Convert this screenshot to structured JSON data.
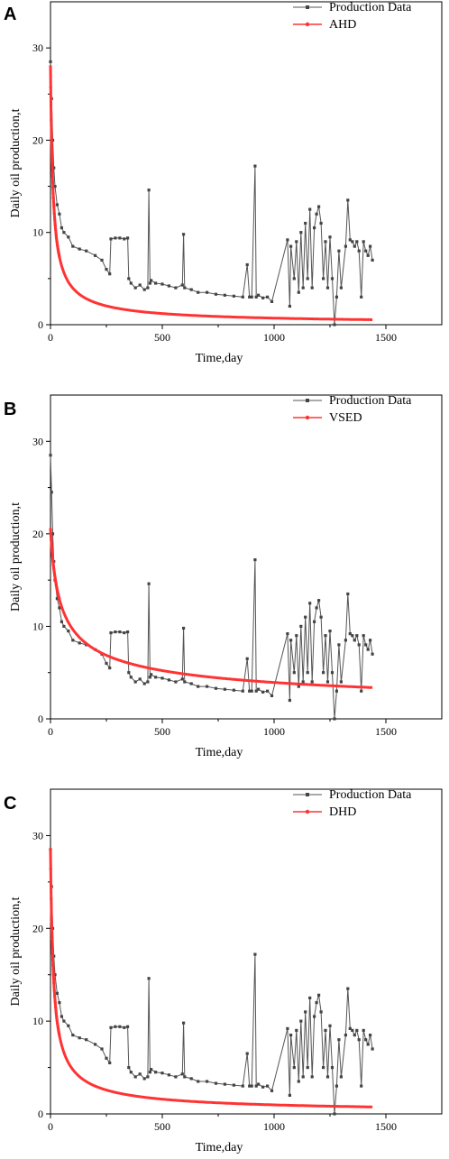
{
  "chart_data": [
    {
      "panel_label": "A",
      "type": "line",
      "xlabel": "Time,day",
      "ylabel": "Daily oil production,t",
      "xlim": [
        0,
        1750
      ],
      "ylim": [
        0,
        35
      ],
      "xticks": [
        0,
        500,
        1000,
        1500
      ],
      "yticks": [
        0,
        10,
        20,
        30
      ],
      "legend_position": "top-right",
      "series": [
        {
          "name": "Production Data",
          "style": "line-with-markers",
          "color": "#555555",
          "x": [
            0,
            5,
            10,
            15,
            20,
            30,
            40,
            50,
            60,
            80,
            100,
            130,
            160,
            200,
            230,
            250,
            265,
            270,
            290,
            310,
            330,
            345,
            350,
            360,
            380,
            400,
            420,
            435,
            440,
            445,
            450,
            470,
            500,
            530,
            560,
            590,
            595,
            600,
            630,
            660,
            700,
            740,
            780,
            820,
            860,
            880,
            890,
            900,
            915,
            920,
            930,
            950,
            970,
            990,
            1060,
            1070,
            1075,
            1090,
            1100,
            1110,
            1120,
            1130,
            1140,
            1150,
            1160,
            1170,
            1180,
            1190,
            1200,
            1210,
            1220,
            1230,
            1240,
            1250,
            1260,
            1270,
            1280,
            1290,
            1300,
            1320,
            1330,
            1340,
            1350,
            1360,
            1370,
            1380,
            1390,
            1400,
            1410,
            1420,
            1430,
            1440
          ],
          "y": [
            28.5,
            24.5,
            20,
            17,
            15,
            13,
            12,
            10.5,
            10,
            9.5,
            8.5,
            8.2,
            8,
            7.5,
            7,
            6,
            5.5,
            9.3,
            9.4,
            9.4,
            9.3,
            9.4,
            5,
            4.5,
            4,
            4.3,
            3.8,
            4,
            14.6,
            4.5,
            4.8,
            4.5,
            4.4,
            4.2,
            4,
            4.3,
            9.8,
            4,
            3.8,
            3.5,
            3.5,
            3.3,
            3.2,
            3.1,
            3,
            6.5,
            3,
            3,
            17.2,
            3,
            3.2,
            2.9,
            3,
            2.5,
            9.2,
            2,
            8.5,
            5,
            9,
            3.5,
            10,
            4,
            11,
            5,
            12.5,
            4,
            10.5,
            12,
            12.8,
            11,
            5,
            9,
            4,
            9.5,
            5,
            0,
            3,
            8,
            4,
            8.5,
            13.5,
            9.2,
            9,
            8.5,
            9,
            8,
            3,
            9,
            8,
            7.5,
            8.5,
            7
          ]
        },
        {
          "name": "AHD",
          "style": "line-with-markers",
          "color": "#ff3333",
          "model": "hyperbolic",
          "qi": 28.0,
          "di": 0.09,
          "b": 1.3,
          "x_end": 1440
        }
      ]
    },
    {
      "panel_label": "B",
      "type": "line",
      "xlabel": "Time,day",
      "ylabel": "Daily oil production,t",
      "xlim": [
        0,
        1750
      ],
      "ylim": [
        0,
        35
      ],
      "xticks": [
        0,
        500,
        1000,
        1500
      ],
      "yticks": [
        0,
        10,
        20,
        30
      ],
      "legend_position": "top-right",
      "series": [
        {
          "name": "Production Data",
          "style": "line-with-markers",
          "color": "#555555",
          "x": [
            0,
            5,
            10,
            15,
            20,
            30,
            40,
            50,
            60,
            80,
            100,
            130,
            160,
            200,
            230,
            250,
            265,
            270,
            290,
            310,
            330,
            345,
            350,
            360,
            380,
            400,
            420,
            435,
            440,
            445,
            450,
            470,
            500,
            530,
            560,
            590,
            595,
            600,
            630,
            660,
            700,
            740,
            780,
            820,
            860,
            880,
            890,
            900,
            915,
            920,
            930,
            950,
            970,
            990,
            1060,
            1070,
            1075,
            1090,
            1100,
            1110,
            1120,
            1130,
            1140,
            1150,
            1160,
            1170,
            1180,
            1190,
            1200,
            1210,
            1220,
            1230,
            1240,
            1250,
            1260,
            1270,
            1280,
            1290,
            1300,
            1320,
            1330,
            1340,
            1350,
            1360,
            1370,
            1380,
            1390,
            1400,
            1410,
            1420,
            1430,
            1440
          ],
          "y": [
            28.5,
            24.5,
            20,
            17,
            15,
            13,
            12,
            10.5,
            10,
            9.5,
            8.5,
            8.2,
            8,
            7.5,
            7,
            6,
            5.5,
            9.3,
            9.4,
            9.4,
            9.3,
            9.4,
            5,
            4.5,
            4,
            4.3,
            3.8,
            4,
            14.6,
            4.5,
            4.8,
            4.5,
            4.4,
            4.2,
            4,
            4.3,
            9.8,
            4,
            3.8,
            3.5,
            3.5,
            3.3,
            3.2,
            3.1,
            3,
            6.5,
            3,
            3,
            17.2,
            3,
            3.2,
            2.9,
            3,
            2.5,
            9.2,
            2,
            8.5,
            5,
            9,
            3.5,
            10,
            4,
            11,
            5,
            12.5,
            4,
            10.5,
            12,
            12.8,
            11,
            5,
            9,
            4,
            9.5,
            5,
            0,
            3,
            8,
            4,
            8.5,
            13.5,
            9.2,
            9,
            8.5,
            9,
            8,
            3,
            9,
            8,
            7.5,
            8.5,
            7
          ]
        },
        {
          "name": "VSED",
          "style": "line-with-markers",
          "color": "#ff3333",
          "model": "power",
          "qi": 20.5,
          "di": 0.05,
          "b": 0.42,
          "x_end": 1440
        }
      ]
    },
    {
      "panel_label": "C",
      "type": "line",
      "xlabel": "Time,day",
      "ylabel": "Daily oil production,t",
      "xlim": [
        0,
        1750
      ],
      "ylim": [
        0,
        35
      ],
      "xticks": [
        0,
        500,
        1000,
        1500
      ],
      "yticks": [
        0,
        10,
        20,
        30
      ],
      "legend_position": "top-right",
      "series": [
        {
          "name": "Production Data",
          "style": "line-with-markers",
          "color": "#555555",
          "x": [
            0,
            5,
            10,
            15,
            20,
            30,
            40,
            50,
            60,
            80,
            100,
            130,
            160,
            200,
            230,
            250,
            265,
            270,
            290,
            310,
            330,
            345,
            350,
            360,
            380,
            400,
            420,
            435,
            440,
            445,
            450,
            470,
            500,
            530,
            560,
            590,
            595,
            600,
            630,
            660,
            700,
            740,
            780,
            820,
            860,
            880,
            890,
            900,
            915,
            920,
            930,
            950,
            970,
            990,
            1060,
            1070,
            1075,
            1090,
            1100,
            1110,
            1120,
            1130,
            1140,
            1150,
            1160,
            1170,
            1180,
            1190,
            1200,
            1210,
            1220,
            1230,
            1240,
            1250,
            1260,
            1270,
            1280,
            1290,
            1300,
            1320,
            1330,
            1340,
            1350,
            1360,
            1370,
            1380,
            1390,
            1400,
            1410,
            1420,
            1430,
            1440
          ],
          "y": [
            28.5,
            24.5,
            20,
            17,
            15,
            13,
            12,
            10.5,
            10,
            9.5,
            8.5,
            8.2,
            8,
            7.5,
            7,
            6,
            5.5,
            9.3,
            9.4,
            9.4,
            9.3,
            9.4,
            5,
            4.5,
            4,
            4.3,
            3.8,
            4,
            14.6,
            4.5,
            4.8,
            4.5,
            4.4,
            4.2,
            4,
            4.3,
            9.8,
            4,
            3.8,
            3.5,
            3.5,
            3.3,
            3.2,
            3.1,
            3,
            6.5,
            3,
            3,
            17.2,
            3,
            3.2,
            2.9,
            3,
            2.5,
            9.2,
            2,
            8.5,
            5,
            9,
            3.5,
            10,
            4,
            11,
            5,
            12.5,
            4,
            10.5,
            12,
            12.8,
            11,
            5,
            9,
            4,
            9.5,
            5,
            0,
            3,
            8,
            4,
            8.5,
            13.5,
            9.2,
            9,
            8.5,
            9,
            8,
            3,
            9,
            8,
            7.5,
            8.5,
            7
          ]
        },
        {
          "name": "DHD",
          "style": "line-with-markers",
          "color": "#ff3333",
          "model": "hyperbolic",
          "qi": 28.5,
          "di": 0.08,
          "b": 1.4,
          "x_end": 1440
        }
      ]
    }
  ]
}
